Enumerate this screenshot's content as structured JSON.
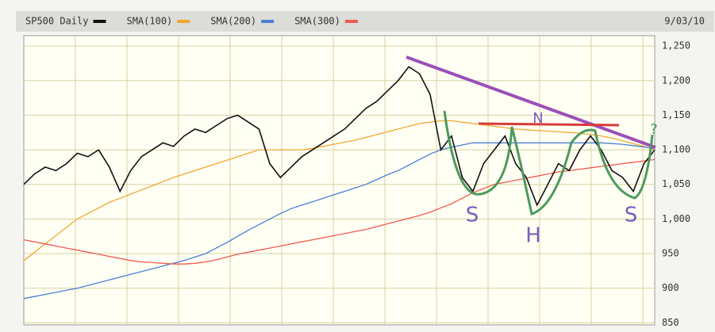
{
  "chart_data": {
    "type": "line",
    "date": "9/03/10",
    "categories": [
      null,
      null,
      null,
      null,
      null,
      null,
      null,
      null,
      null,
      null,
      null,
      null,
      null,
      null,
      null,
      null,
      null,
      null,
      null,
      null,
      null,
      null,
      null,
      null,
      null,
      null,
      null,
      null,
      null,
      null,
      null,
      null,
      null,
      null,
      null,
      null,
      null,
      null,
      null,
      null,
      null,
      null,
      null,
      null,
      null,
      null,
      null,
      null,
      null,
      null,
      null,
      null,
      null,
      null,
      null,
      null,
      null,
      null,
      null,
      null
    ],
    "ylim": [
      847,
      1265
    ],
    "yticks": [
      {
        "value": 850,
        "label": "850"
      },
      {
        "value": 900,
        "label": "900"
      },
      {
        "value": 950,
        "label": "950"
      },
      {
        "value": 1000,
        "label": "1,000"
      },
      {
        "value": 1050,
        "label": "1,050"
      },
      {
        "value": 1100,
        "label": "1,100"
      },
      {
        "value": 1150,
        "label": "1,150"
      },
      {
        "value": 1200,
        "label": "1,200"
      },
      {
        "value": 1250,
        "label": "1,250"
      }
    ],
    "grid": true,
    "series": [
      {
        "name": "SP500 Daily",
        "color": "#111111",
        "values": [
          1050,
          1065,
          1075,
          1070,
          1080,
          1095,
          1090,
          1100,
          1075,
          1040,
          1070,
          1090,
          1100,
          1110,
          1105,
          1120,
          1130,
          1125,
          1135,
          1145,
          1150,
          1140,
          1130,
          1080,
          1060,
          1075,
          1090,
          1100,
          1110,
          1120,
          1130,
          1145,
          1160,
          1170,
          1185,
          1200,
          1220,
          1210,
          1180,
          1100,
          1120,
          1060,
          1040,
          1080,
          1100,
          1120,
          1080,
          1060,
          1020,
          1050,
          1080,
          1070,
          1100,
          1120,
          1100,
          1070,
          1060,
          1040,
          1080,
          1100
        ]
      },
      {
        "name": "SMA(100)",
        "color": "#f0a830",
        "values": [
          940,
          952,
          964,
          976,
          988,
          1000,
          1008,
          1016,
          1024,
          1030,
          1036,
          1042,
          1048,
          1054,
          1060,
          1065,
          1070,
          1075,
          1080,
          1085,
          1090,
          1095,
          1100,
          1100,
          1100,
          1100,
          1100,
          1102,
          1105,
          1108,
          1111,
          1114,
          1118,
          1122,
          1126,
          1130,
          1134,
          1138,
          1140,
          1142,
          1142,
          1140,
          1138,
          1136,
          1134,
          1132,
          1130,
          1129,
          1128,
          1127,
          1126,
          1125,
          1124,
          1122,
          1120,
          1117,
          1113,
          1109,
          1105,
          1100
        ]
      },
      {
        "name": "SMA(200)",
        "color": "#4a7fd4",
        "values": [
          885,
          888,
          891,
          894,
          897,
          900,
          904,
          908,
          912,
          916,
          920,
          924,
          928,
          932,
          936,
          940,
          945,
          950,
          958,
          966,
          975,
          984,
          992,
          1000,
          1008,
          1015,
          1020,
          1025,
          1030,
          1035,
          1040,
          1045,
          1050,
          1057,
          1064,
          1070,
          1078,
          1086,
          1094,
          1100,
          1104,
          1107,
          1110,
          1110,
          1110,
          1110,
          1110,
          1110,
          1110,
          1110,
          1110,
          1110,
          1110,
          1110,
          1110,
          1109,
          1108,
          1106,
          1104,
          1102
        ]
      },
      {
        "name": "SMA(300)",
        "color": "#f05a50",
        "values": [
          970,
          967,
          964,
          961,
          958,
          955,
          952,
          949,
          946,
          943,
          940,
          938,
          937,
          936,
          935,
          935,
          936,
          938,
          941,
          945,
          949,
          952,
          955,
          958,
          961,
          964,
          967,
          970,
          973,
          976,
          979,
          982,
          985,
          989,
          993,
          997,
          1001,
          1005,
          1010,
          1016,
          1022,
          1030,
          1038,
          1044,
          1050,
          1053,
          1056,
          1059,
          1062,
          1065,
          1068,
          1070,
          1072,
          1074,
          1076,
          1078,
          1080,
          1082,
          1084,
          1086
        ]
      }
    ],
    "annotations": [
      "N",
      "S",
      "H",
      "S",
      "?"
    ]
  }
}
